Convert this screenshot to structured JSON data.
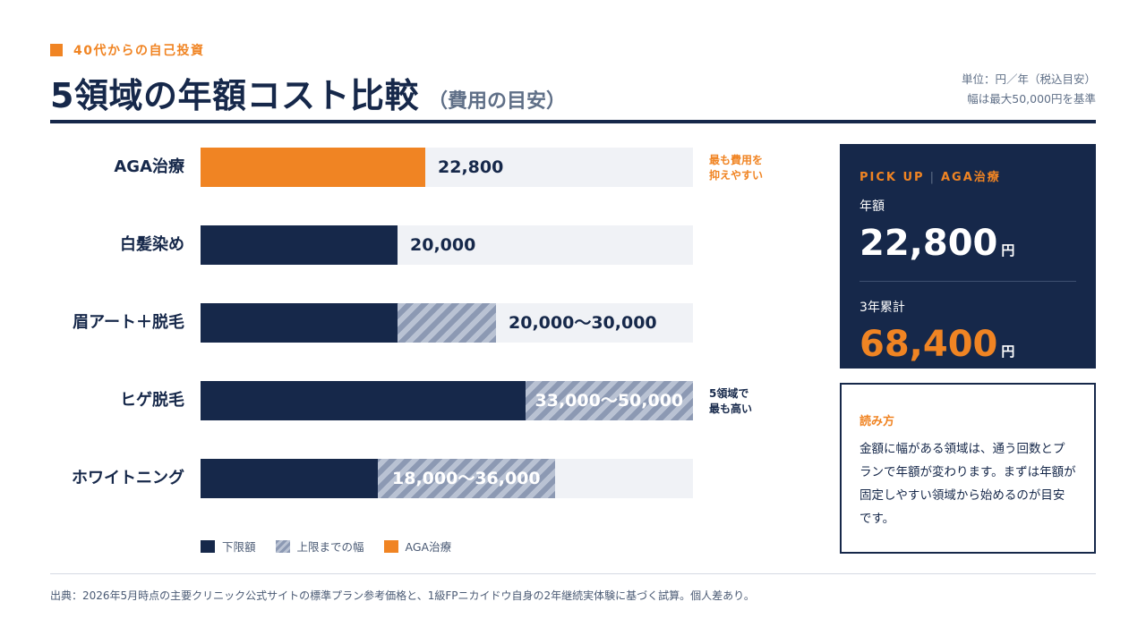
{
  "header": {
    "kicker": "40代からの自己投資",
    "title": "5領域の年額コスト比較",
    "subtitle": "（費用の目安）",
    "unit_line1": "単位：円／年（税込目安）",
    "unit_line2": "幅は最大50,000円を基準"
  },
  "chart_data": {
    "type": "bar",
    "orientation": "horizontal",
    "xlim": [
      0,
      50000
    ],
    "categories": [
      "AGA治療",
      "白髪染め",
      "眉アート＋脱毛",
      "ヒゲ脱毛",
      "ホワイトニング"
    ],
    "series": [
      {
        "name": "下限額",
        "values": [
          22800,
          20000,
          20000,
          33000,
          18000
        ]
      },
      {
        "name": "上限までの幅",
        "values": [
          0,
          0,
          10000,
          17000,
          18000
        ]
      }
    ],
    "highlight_category": "AGA治療",
    "value_labels": [
      "22,800",
      "20,000",
      "20,000〜30,000",
      "33,000〜50,000",
      "18,000〜36,000"
    ],
    "annotations": [
      {
        "category": "AGA治療",
        "lines": [
          "最も費用を",
          "抑えやすい"
        ],
        "color": "#f08423"
      },
      {
        "category": "ヒゲ脱毛",
        "lines": [
          "5領域で",
          "最も高い"
        ],
        "color": "#16284a"
      }
    ],
    "legend": [
      {
        "label": "下限額",
        "key": "lower"
      },
      {
        "label": "上限までの幅",
        "key": "range"
      },
      {
        "label": "AGA治療",
        "key": "aga"
      }
    ],
    "legend_position": "bottom-left",
    "grid": false
  },
  "pickup": {
    "label": "PICK UP",
    "target": "AGA治療",
    "annual_label": "年額",
    "annual_value": "22,800",
    "annual_unit": "円",
    "total_label": "3年累計",
    "total_value": "68,400",
    "total_unit": "円"
  },
  "howto": {
    "heading": "読み方",
    "body": "金額に幅がある領域は、通う回数とプランで年額が変わります。まずは年額が固定しやすい領域から始めるのが目安です。"
  },
  "footnote": "出典：2026年5月時点の主要クリニック公式サイトの標準プラン参考価格と、1級FPニカイドウ自身の2年継続実体験に基づく試算。個人差あり。",
  "colors": {
    "navy": "#16284a",
    "orange": "#f08423",
    "track": "#f0f2f6",
    "range_stripe_dark": "#8c99b3",
    "range_stripe_light": "#b9c2d3"
  }
}
